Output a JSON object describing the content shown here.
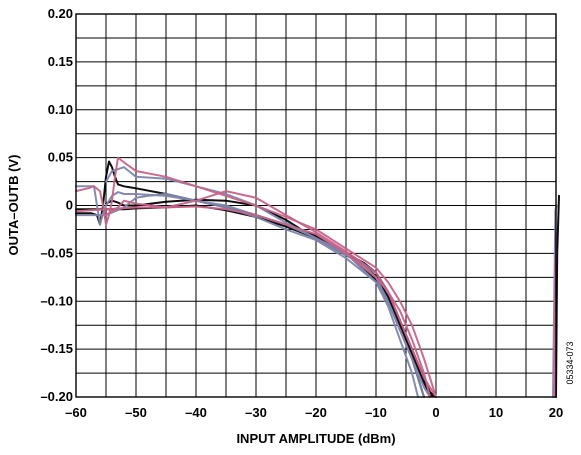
{
  "chart_data": {
    "type": "line",
    "title": "",
    "xlabel": "INPUT AMPLITUDE (dBm)",
    "ylabel": "OUTA–OUTB (V)",
    "xlim": [
      -60,
      20
    ],
    "ylim": [
      -0.2,
      0.2
    ],
    "grid": true,
    "x_ticks": [
      -60,
      -50,
      -40,
      -30,
      -20,
      -10,
      0,
      10,
      20
    ],
    "x_tick_labels": [
      "–60",
      "–50",
      "–40",
      "–30",
      "–20",
      "–10",
      "0",
      "10",
      "20"
    ],
    "y_ticks": [
      0.2,
      0.15,
      0.1,
      0.05,
      0,
      -0.05,
      -0.1,
      -0.15,
      -0.2
    ],
    "y_tick_labels": [
      "0.20",
      "0.15",
      "0.10",
      "0.05",
      "0",
      "–0.05",
      "–0.10",
      "–0.15",
      "–0.20"
    ],
    "annotation": "05334-073",
    "series": [
      {
        "color": "#000000",
        "x": [
          -60,
          -57.5,
          -56.5,
          -56,
          -55.5,
          -55,
          -54.5,
          -54,
          -53.5,
          -53,
          -52,
          -50,
          -45,
          -40,
          -35,
          -30,
          -25,
          -20,
          -15,
          -12,
          -10,
          -8,
          -6,
          -4,
          -2,
          -1,
          0
        ],
        "y": [
          -0.008,
          -0.008,
          -0.01,
          -0.02,
          0.0,
          0.03,
          0.046,
          0.04,
          0.03,
          0.022,
          0.02,
          0.018,
          0.012,
          0.005,
          -0.002,
          -0.01,
          -0.02,
          -0.032,
          -0.05,
          -0.06,
          -0.07,
          -0.09,
          -0.12,
          -0.15,
          -0.18,
          -0.195,
          -0.2
        ]
      },
      {
        "color": "#000000",
        "x": [
          -60,
          -55,
          -52,
          -50,
          -45,
          -40,
          -35,
          -30,
          -25,
          -20,
          -15,
          -12,
          -10,
          -8,
          -6,
          -4,
          -2,
          -1,
          0
        ],
        "y": [
          -0.004,
          -0.004,
          -0.004,
          -0.003,
          -0.002,
          0.0,
          -0.005,
          -0.012,
          -0.022,
          -0.034,
          -0.052,
          -0.062,
          -0.074,
          -0.095,
          -0.125,
          -0.155,
          -0.185,
          -0.198,
          -0.2
        ]
      },
      {
        "color": "#000000",
        "x": [
          -55,
          -54,
          -53,
          -52,
          -50,
          -45,
          -40,
          -35,
          -30,
          -25,
          -20,
          -15,
          -10,
          -8,
          -6,
          -4,
          -3,
          -2
        ],
        "y": [
          0.002,
          0.005,
          0.003,
          0.0,
          0.0,
          0.004,
          0.006,
          0.005,
          0.0,
          -0.015,
          -0.035,
          -0.05,
          -0.078,
          -0.1,
          -0.13,
          -0.16,
          -0.18,
          -0.2
        ]
      },
      {
        "color": "#000000",
        "x": [
          20,
          20.2,
          20.5
        ],
        "y": [
          -0.2,
          -0.05,
          0.01
        ]
      },
      {
        "color": "#7f86ab",
        "x": [
          -60,
          -58,
          -57,
          -56.5,
          -56,
          -55.5,
          -55,
          -54,
          -53,
          -52,
          -50,
          -45,
          -40,
          -35,
          -30,
          -25,
          -20,
          -15,
          -10,
          -8,
          -6,
          -4,
          -3,
          -2
        ],
        "y": [
          0.02,
          0.02,
          0.02,
          0.0,
          -0.02,
          -0.008,
          0.0,
          0.01,
          0.014,
          0.012,
          0.012,
          0.01,
          0.005,
          -0.002,
          -0.012,
          -0.025,
          -0.036,
          -0.055,
          -0.08,
          -0.1,
          -0.13,
          -0.16,
          -0.18,
          -0.2
        ]
      },
      {
        "color": "#7f86ab",
        "x": [
          -60,
          -55,
          -52,
          -50,
          -48,
          -45,
          -40,
          -35,
          -30,
          -25,
          -20,
          -15,
          -12,
          -10,
          -8,
          -6,
          -4,
          -2,
          -1
        ],
        "y": [
          -0.01,
          -0.01,
          -0.002,
          0.008,
          0.01,
          0.012,
          0.005,
          0.0,
          -0.01,
          -0.02,
          -0.034,
          -0.052,
          -0.062,
          -0.075,
          -0.1,
          -0.13,
          -0.16,
          -0.19,
          -0.2
        ]
      },
      {
        "color": "#7f86ab",
        "x": [
          -55,
          -54,
          -52,
          -50,
          -45,
          -40,
          -35,
          -30,
          -25,
          -20,
          -15,
          -10,
          -8,
          -6,
          -4,
          -3
        ],
        "y": [
          0.025,
          0.036,
          0.04,
          0.03,
          0.028,
          0.02,
          0.012,
          0.0,
          -0.018,
          -0.034,
          -0.05,
          -0.08,
          -0.105,
          -0.14,
          -0.175,
          -0.2
        ]
      },
      {
        "color": "#7f86ab",
        "x": [
          19.5,
          19.7,
          19.9,
          20.1
        ],
        "y": [
          -0.2,
          -0.1,
          -0.005,
          0.0
        ]
      },
      {
        "color": "#c8638a",
        "x": [
          -60,
          -58,
          -57,
          -56,
          -55.5,
          -55,
          -54.5,
          -54,
          -53.5,
          -53,
          -52,
          -50,
          -45,
          -40,
          -35,
          -30,
          -25,
          -20,
          -15,
          -10,
          -8,
          -6,
          -4,
          -2,
          -0.5,
          0
        ],
        "y": [
          0.015,
          0.018,
          0.02,
          0.015,
          0.0,
          -0.02,
          -0.01,
          0.005,
          0.03,
          0.05,
          0.045,
          0.036,
          0.03,
          0.02,
          0.01,
          0.0,
          -0.012,
          -0.025,
          -0.045,
          -0.065,
          -0.08,
          -0.1,
          -0.125,
          -0.16,
          -0.19,
          -0.2
        ]
      },
      {
        "color": "#c8638a",
        "x": [
          -55,
          -53,
          -52,
          -50,
          -45,
          -40,
          -35,
          -30,
          -25,
          -20,
          -15,
          -10,
          -8,
          -6,
          -4,
          -2,
          -1
        ],
        "y": [
          -0.01,
          -0.002,
          0.005,
          0.002,
          -0.002,
          0.005,
          0.015,
          0.008,
          -0.01,
          -0.028,
          -0.048,
          -0.07,
          -0.09,
          -0.11,
          -0.14,
          -0.175,
          -0.2
        ]
      },
      {
        "color": "#c8638a",
        "x": [
          -60,
          -55,
          -50,
          -45,
          -40,
          -35,
          -30,
          -25,
          -20,
          -15,
          -10,
          -8,
          -6,
          -4,
          -2,
          0
        ],
        "y": [
          -0.006,
          -0.004,
          -0.002,
          -0.002,
          -0.001,
          -0.004,
          -0.01,
          -0.02,
          -0.03,
          -0.05,
          -0.075,
          -0.09,
          -0.12,
          -0.15,
          -0.18,
          -0.2
        ]
      },
      {
        "color": "#c8638a",
        "x": [
          19.8,
          19.9,
          20.0
        ],
        "y": [
          -0.2,
          -0.1,
          -0.03
        ]
      }
    ]
  }
}
